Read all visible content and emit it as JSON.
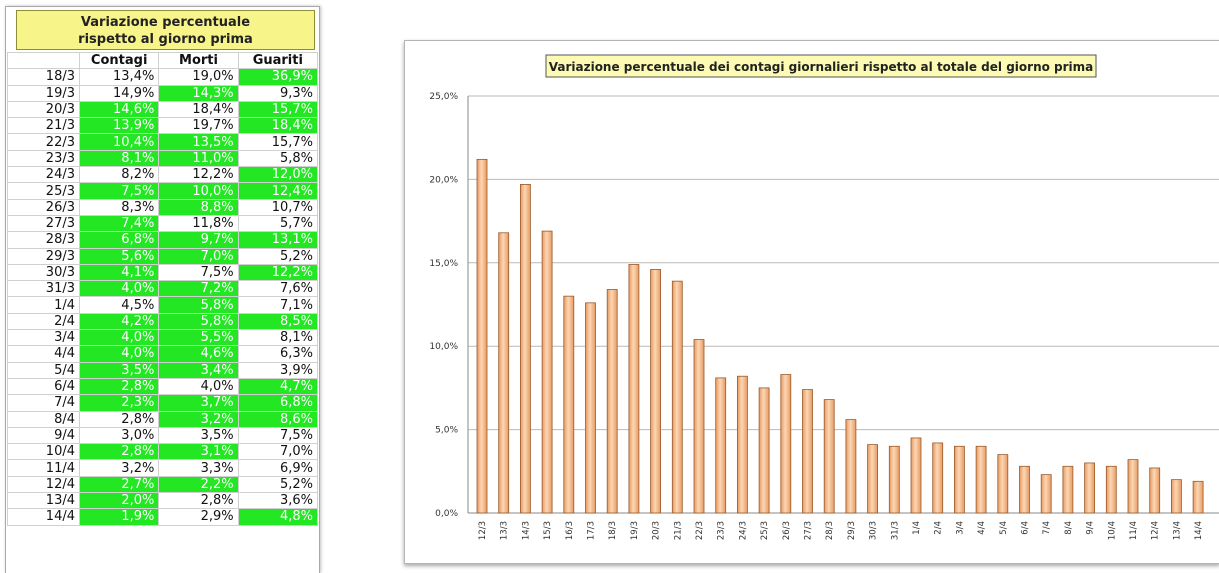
{
  "table": {
    "title_lines": [
      "Variazione percentuale",
      "rispetto al giorno prima"
    ],
    "headers": [
      "",
      "Contagi",
      "Morti",
      "Guariti"
    ],
    "rows": [
      {
        "date": "18/3",
        "contagi": "13,4%",
        "morti": "19,0%",
        "guariti": "36,9%",
        "hi": [
          false,
          false,
          true
        ]
      },
      {
        "date": "19/3",
        "contagi": "14,9%",
        "morti": "14,3%",
        "guariti": "9,3%",
        "hi": [
          false,
          true,
          false
        ]
      },
      {
        "date": "20/3",
        "contagi": "14,6%",
        "morti": "18,4%",
        "guariti": "15,7%",
        "hi": [
          true,
          false,
          true
        ]
      },
      {
        "date": "21/3",
        "contagi": "13,9%",
        "morti": "19,7%",
        "guariti": "18,4%",
        "hi": [
          true,
          false,
          true
        ]
      },
      {
        "date": "22/3",
        "contagi": "10,4%",
        "morti": "13,5%",
        "guariti": "15,7%",
        "hi": [
          true,
          true,
          false
        ]
      },
      {
        "date": "23/3",
        "contagi": "8,1%",
        "morti": "11,0%",
        "guariti": "5,8%",
        "hi": [
          true,
          true,
          false
        ]
      },
      {
        "date": "24/3",
        "contagi": "8,2%",
        "morti": "12,2%",
        "guariti": "12,0%",
        "hi": [
          false,
          false,
          true
        ]
      },
      {
        "date": "25/3",
        "contagi": "7,5%",
        "morti": "10,0%",
        "guariti": "12,4%",
        "hi": [
          true,
          true,
          true
        ]
      },
      {
        "date": "26/3",
        "contagi": "8,3%",
        "morti": "8,8%",
        "guariti": "10,7%",
        "hi": [
          false,
          true,
          false
        ]
      },
      {
        "date": "27/3",
        "contagi": "7,4%",
        "morti": "11,8%",
        "guariti": "5,7%",
        "hi": [
          true,
          false,
          false
        ]
      },
      {
        "date": "28/3",
        "contagi": "6,8%",
        "morti": "9,7%",
        "guariti": "13,1%",
        "hi": [
          true,
          true,
          true
        ]
      },
      {
        "date": "29/3",
        "contagi": "5,6%",
        "morti": "7,0%",
        "guariti": "5,2%",
        "hi": [
          true,
          true,
          false
        ]
      },
      {
        "date": "30/3",
        "contagi": "4,1%",
        "morti": "7,5%",
        "guariti": "12,2%",
        "hi": [
          true,
          false,
          true
        ]
      },
      {
        "date": "31/3",
        "contagi": "4,0%",
        "morti": "7,2%",
        "guariti": "7,6%",
        "hi": [
          true,
          true,
          false
        ]
      },
      {
        "date": "1/4",
        "contagi": "4,5%",
        "morti": "5,8%",
        "guariti": "7,1%",
        "hi": [
          false,
          true,
          false
        ]
      },
      {
        "date": "2/4",
        "contagi": "4,2%",
        "morti": "5,8%",
        "guariti": "8,5%",
        "hi": [
          true,
          true,
          true
        ]
      },
      {
        "date": "3/4",
        "contagi": "4,0%",
        "morti": "5,5%",
        "guariti": "8,1%",
        "hi": [
          true,
          true,
          false
        ]
      },
      {
        "date": "4/4",
        "contagi": "4,0%",
        "morti": "4,6%",
        "guariti": "6,3%",
        "hi": [
          true,
          true,
          false
        ]
      },
      {
        "date": "5/4",
        "contagi": "3,5%",
        "morti": "3,4%",
        "guariti": "3,9%",
        "hi": [
          true,
          true,
          false
        ]
      },
      {
        "date": "6/4",
        "contagi": "2,8%",
        "morti": "4,0%",
        "guariti": "4,7%",
        "hi": [
          true,
          false,
          true
        ]
      },
      {
        "date": "7/4",
        "contagi": "2,3%",
        "morti": "3,7%",
        "guariti": "6,8%",
        "hi": [
          true,
          true,
          true
        ]
      },
      {
        "date": "8/4",
        "contagi": "2,8%",
        "morti": "3,2%",
        "guariti": "8,6%",
        "hi": [
          false,
          true,
          true
        ]
      },
      {
        "date": "9/4",
        "contagi": "3,0%",
        "morti": "3,5%",
        "guariti": "7,5%",
        "hi": [
          false,
          false,
          false
        ]
      },
      {
        "date": "10/4",
        "contagi": "2,8%",
        "morti": "3,1%",
        "guariti": "7,0%",
        "hi": [
          true,
          true,
          false
        ]
      },
      {
        "date": "11/4",
        "contagi": "3,2%",
        "morti": "3,3%",
        "guariti": "6,9%",
        "hi": [
          false,
          false,
          false
        ]
      },
      {
        "date": "12/4",
        "contagi": "2,7%",
        "morti": "2,2%",
        "guariti": "5,2%",
        "hi": [
          true,
          true,
          false
        ]
      },
      {
        "date": "13/4",
        "contagi": "2,0%",
        "morti": "2,8%",
        "guariti": "3,6%",
        "hi": [
          true,
          false,
          false
        ]
      },
      {
        "date": "14/4",
        "contagi": "1,9%",
        "morti": "2,9%",
        "guariti": "4,8%",
        "hi": [
          true,
          false,
          true
        ]
      }
    ]
  },
  "colors": {
    "highlight": "#22e722",
    "bar_fill_light": "#fbd7b5",
    "bar_fill_dark": "#e89a62",
    "bar_stroke": "#9a5a2a",
    "title_box": "#fdfbb3"
  },
  "chart_data": {
    "type": "bar",
    "title": "Variazione percentuale dei contagi giornalieri rispetto al totale del giorno prima",
    "xlabel": "",
    "ylabel": "",
    "ylim": [
      0,
      25
    ],
    "yticks": [
      0,
      5,
      10,
      15,
      20,
      25
    ],
    "ytick_labels": [
      "0,0%",
      "5,0%",
      "10,0%",
      "15,0%",
      "20,0%",
      "25,0%"
    ],
    "grid": true,
    "categories": [
      "12/3",
      "13/3",
      "14/3",
      "15/3",
      "16/3",
      "17/3",
      "18/3",
      "19/3",
      "20/3",
      "21/3",
      "22/3",
      "23/3",
      "24/3",
      "25/3",
      "26/3",
      "27/3",
      "28/3",
      "29/3",
      "30/3",
      "31/3",
      "1/4",
      "2/4",
      "3/4",
      "4/4",
      "5/4",
      "6/4",
      "7/4",
      "8/4",
      "9/4",
      "10/4",
      "11/4",
      "12/4",
      "13/4",
      "14/4"
    ],
    "values": [
      21.2,
      16.8,
      19.7,
      16.9,
      13.0,
      12.6,
      13.4,
      14.9,
      14.6,
      13.9,
      10.4,
      8.1,
      8.2,
      7.5,
      8.3,
      7.4,
      6.8,
      5.6,
      4.1,
      4.0,
      4.5,
      4.2,
      4.0,
      4.0,
      3.5,
      2.8,
      2.3,
      2.8,
      3.0,
      2.8,
      3.2,
      2.7,
      2.0,
      1.9
    ]
  }
}
